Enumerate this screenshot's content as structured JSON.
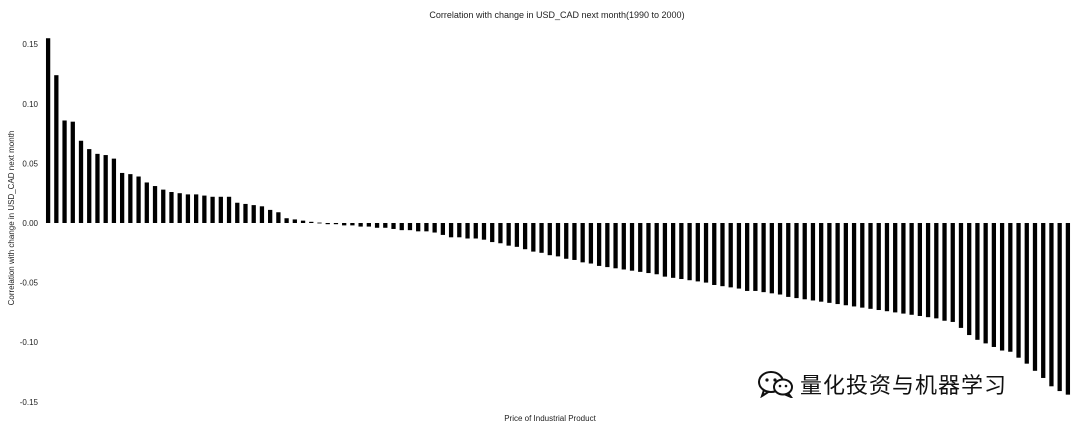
{
  "chart_data": {
    "type": "bar",
    "title": "Correlation with change in USD_CAD next month(1990 to 2000)",
    "xlabel": "Price of Industrial Product",
    "ylabel": "Correlation with change in USD_CAD next month",
    "ylim": [
      -0.15,
      0.16
    ],
    "yticks": [
      0.15,
      0.1,
      0.05,
      0.0,
      -0.05,
      -0.1,
      -0.15
    ],
    "ytick_labels": [
      "0.15",
      "0.10",
      "0.05",
      "0.00",
      "-0.05",
      "-0.10",
      "-0.15"
    ],
    "grid": false,
    "bar_color": "#000000",
    "values": [
      0.155,
      0.124,
      0.086,
      0.085,
      0.069,
      0.062,
      0.058,
      0.057,
      0.054,
      0.042,
      0.041,
      0.039,
      0.034,
      0.031,
      0.028,
      0.026,
      0.025,
      0.024,
      0.024,
      0.023,
      0.022,
      0.022,
      0.022,
      0.017,
      0.016,
      0.015,
      0.014,
      0.011,
      0.009,
      0.004,
      0.003,
      0.002,
      0.001,
      0.0,
      -0.001,
      -0.001,
      -0.002,
      -0.002,
      -0.003,
      -0.003,
      -0.004,
      -0.004,
      -0.005,
      -0.006,
      -0.006,
      -0.007,
      -0.007,
      -0.008,
      -0.01,
      -0.012,
      -0.012,
      -0.013,
      -0.013,
      -0.014,
      -0.016,
      -0.017,
      -0.019,
      -0.02,
      -0.022,
      -0.024,
      -0.025,
      -0.027,
      -0.028,
      -0.03,
      -0.031,
      -0.033,
      -0.034,
      -0.036,
      -0.037,
      -0.038,
      -0.039,
      -0.04,
      -0.041,
      -0.042,
      -0.043,
      -0.045,
      -0.046,
      -0.047,
      -0.048,
      -0.049,
      -0.05,
      -0.052,
      -0.053,
      -0.054,
      -0.055,
      -0.057,
      -0.057,
      -0.058,
      -0.059,
      -0.06,
      -0.062,
      -0.063,
      -0.064,
      -0.065,
      -0.066,
      -0.067,
      -0.068,
      -0.069,
      -0.07,
      -0.071,
      -0.072,
      -0.073,
      -0.074,
      -0.075,
      -0.076,
      -0.077,
      -0.078,
      -0.079,
      -0.08,
      -0.082,
      -0.083,
      -0.088,
      -0.094,
      -0.098,
      -0.101,
      -0.104,
      -0.107,
      -0.108,
      -0.113,
      -0.118,
      -0.124,
      -0.13,
      -0.137,
      -0.141,
      -0.144
    ]
  },
  "watermark": {
    "text": "量化投资与机器学习",
    "icon": "wechat-icon"
  }
}
